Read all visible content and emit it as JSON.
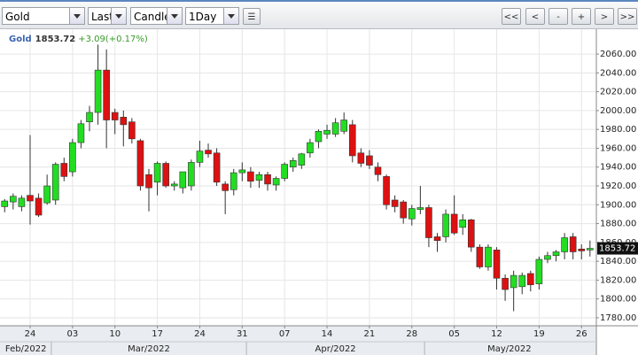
{
  "toolbar": {
    "symbol": "Gold",
    "price_field": "Last",
    "chart_style": "Candle",
    "interval": "1Day",
    "nav_buttons": [
      "<<",
      "<",
      "-",
      "+",
      ">",
      ">>"
    ]
  },
  "chart_data": {
    "type": "candlestick",
    "symbol": "Gold",
    "last_price": 1853.72,
    "change": "+3.09(+0.17%)",
    "up_color": "#22dd22",
    "down_color": "#dd1111",
    "grid": true,
    "x": [
      "2022-02-21",
      "2022-02-22",
      "2022-02-23",
      "2022-02-24",
      "2022-02-25",
      "2022-02-28",
      "2022-03-01",
      "2022-03-02",
      "2022-03-03",
      "2022-03-04",
      "2022-03-07",
      "2022-03-08",
      "2022-03-09",
      "2022-03-10",
      "2022-03-11",
      "2022-03-14",
      "2022-03-15",
      "2022-03-16",
      "2022-03-17",
      "2022-03-18",
      "2022-03-21",
      "2022-03-22",
      "2022-03-23",
      "2022-03-24",
      "2022-03-25",
      "2022-03-28",
      "2022-03-29",
      "2022-03-30",
      "2022-03-31",
      "2022-04-01",
      "2022-04-04",
      "2022-04-05",
      "2022-04-06",
      "2022-04-07",
      "2022-04-08",
      "2022-04-11",
      "2022-04-12",
      "2022-04-13",
      "2022-04-14",
      "2022-04-15",
      "2022-04-18",
      "2022-04-19",
      "2022-04-20",
      "2022-04-21",
      "2022-04-22",
      "2022-04-25",
      "2022-04-26",
      "2022-04-27",
      "2022-04-28",
      "2022-04-29",
      "2022-05-02",
      "2022-05-03",
      "2022-05-04",
      "2022-05-05",
      "2022-05-06",
      "2022-05-09",
      "2022-05-10",
      "2022-05-11",
      "2022-05-12",
      "2022-05-13",
      "2022-05-16",
      "2022-05-17",
      "2022-05-18",
      "2022-05-19",
      "2022-05-20",
      "2022-05-23",
      "2022-05-24",
      "2022-05-25",
      "2022-05-26",
      "2022-05-27"
    ],
    "open": [
      1898,
      1903,
      1898,
      1910,
      1907,
      1902,
      1905,
      1944,
      1935,
      1966,
      1988,
      1998,
      2043,
      1998,
      1993,
      1988,
      1968,
      1932,
      1924,
      1944,
      1920,
      1918,
      1920,
      1945,
      1958,
      1955,
      1922,
      1916,
      1934,
      1935,
      1926,
      1932,
      1921,
      1928,
      1940,
      1942,
      1955,
      1967,
      1975,
      1975,
      1978,
      1985,
      1955,
      1952,
      1940,
      1930,
      1905,
      1903,
      1885,
      1895,
      1897,
      1866,
      1866,
      1890,
      1876,
      1884,
      1855,
      1834,
      1852,
      1822,
      1812,
      1813,
      1827,
      1816,
      1842,
      1846,
      1850,
      1866,
      1853,
      1852
    ],
    "high": [
      1906,
      1912,
      1910,
      1974,
      1912,
      1932,
      1945,
      1950,
      1970,
      1990,
      2005,
      2070,
      2065,
      2002,
      2000,
      1992,
      1970,
      1938,
      1946,
      1946,
      1925,
      1935,
      1948,
      1968,
      1965,
      1960,
      1925,
      1938,
      1945,
      1940,
      1935,
      1935,
      1930,
      1945,
      1950,
      1955,
      1970,
      1980,
      1985,
      1992,
      1998,
      1990,
      1960,
      1958,
      1945,
      1932,
      1910,
      1905,
      1900,
      1920,
      1900,
      1870,
      1895,
      1910,
      1890,
      1885,
      1858,
      1858,
      1855,
      1826,
      1830,
      1828,
      1830,
      1845,
      1850,
      1852,
      1870,
      1870,
      1858,
      1862
    ],
    "low": [
      1892,
      1895,
      1893,
      1879,
      1887,
      1900,
      1900,
      1925,
      1930,
      1960,
      1978,
      1985,
      1960,
      1975,
      1962,
      1965,
      1915,
      1893,
      1910,
      1918,
      1915,
      1912,
      1915,
      1940,
      1950,
      1920,
      1890,
      1910,
      1925,
      1918,
      1918,
      1915,
      1915,
      1925,
      1935,
      1938,
      1950,
      1960,
      1970,
      1972,
      1975,
      1945,
      1940,
      1938,
      1925,
      1895,
      1892,
      1880,
      1878,
      1890,
      1855,
      1850,
      1860,
      1868,
      1868,
      1850,
      1832,
      1830,
      1810,
      1798,
      1787,
      1805,
      1808,
      1810,
      1838,
      1840,
      1842,
      1842,
      1842,
      1845
    ],
    "close": [
      1904,
      1909,
      1907,
      1904,
      1889,
      1920,
      1943,
      1930,
      1966,
      1986,
      1998,
      2043,
      1990,
      1990,
      1985,
      1970,
      1920,
      1918,
      1944,
      1920,
      1922,
      1935,
      1945,
      1957,
      1954,
      1924,
      1915,
      1934,
      1937,
      1925,
      1932,
      1922,
      1928,
      1943,
      1947,
      1954,
      1966,
      1978,
      1979,
      1987,
      1990,
      1952,
      1944,
      1942,
      1932,
      1900,
      1898,
      1886,
      1896,
      1897,
      1865,
      1862,
      1890,
      1870,
      1884,
      1855,
      1834,
      1855,
      1822,
      1810,
      1825,
      1825,
      1815,
      1842,
      1846,
      1850,
      1865,
      1850,
      1851,
      1853.72
    ],
    "xticks": [
      {
        "value": "2022-02-24",
        "label": "24"
      },
      {
        "value": "2022-03-03",
        "label": "03"
      },
      {
        "value": "2022-03-10",
        "label": "10"
      },
      {
        "value": "2022-03-17",
        "label": "17"
      },
      {
        "value": "2022-03-24",
        "label": "24"
      },
      {
        "value": "2022-03-31",
        "label": "31"
      },
      {
        "value": "2022-04-07",
        "label": "07"
      },
      {
        "value": "2022-04-14",
        "label": "14"
      },
      {
        "value": "2022-04-21",
        "label": "21"
      },
      {
        "value": "2022-04-28",
        "label": "28"
      },
      {
        "value": "2022-05-05",
        "label": "05"
      },
      {
        "value": "2022-05-12",
        "label": "12"
      },
      {
        "value": "2022-05-19",
        "label": "19"
      },
      {
        "value": "2022-05-26",
        "label": "26"
      }
    ],
    "months": [
      "Feb/2022",
      "Mar/2022",
      "Apr/2022",
      "May/2022"
    ],
    "ylim": [
      1771.5,
      2084.5
    ],
    "yticks": [
      {
        "value": 1780,
        "label": "1780.00"
      },
      {
        "value": 1800,
        "label": "1800.00"
      },
      {
        "value": 1820,
        "label": "1820.00"
      },
      {
        "value": 1840,
        "label": "1840.00"
      },
      {
        "value": 1860,
        "label": "1860.00"
      },
      {
        "value": 1880,
        "label": "1880.00"
      },
      {
        "value": 1900,
        "label": "1900.00"
      },
      {
        "value": 1920,
        "label": "1920.00"
      },
      {
        "value": 1940,
        "label": "1940.00"
      },
      {
        "value": 1960,
        "label": "1960.00"
      },
      {
        "value": 1980,
        "label": "1980.00"
      },
      {
        "value": 2000,
        "label": "2000.00"
      },
      {
        "value": 2020,
        "label": "2020.00"
      },
      {
        "value": 2040,
        "label": "2040.00"
      },
      {
        "value": 2060,
        "label": "2060.00"
      }
    ]
  }
}
